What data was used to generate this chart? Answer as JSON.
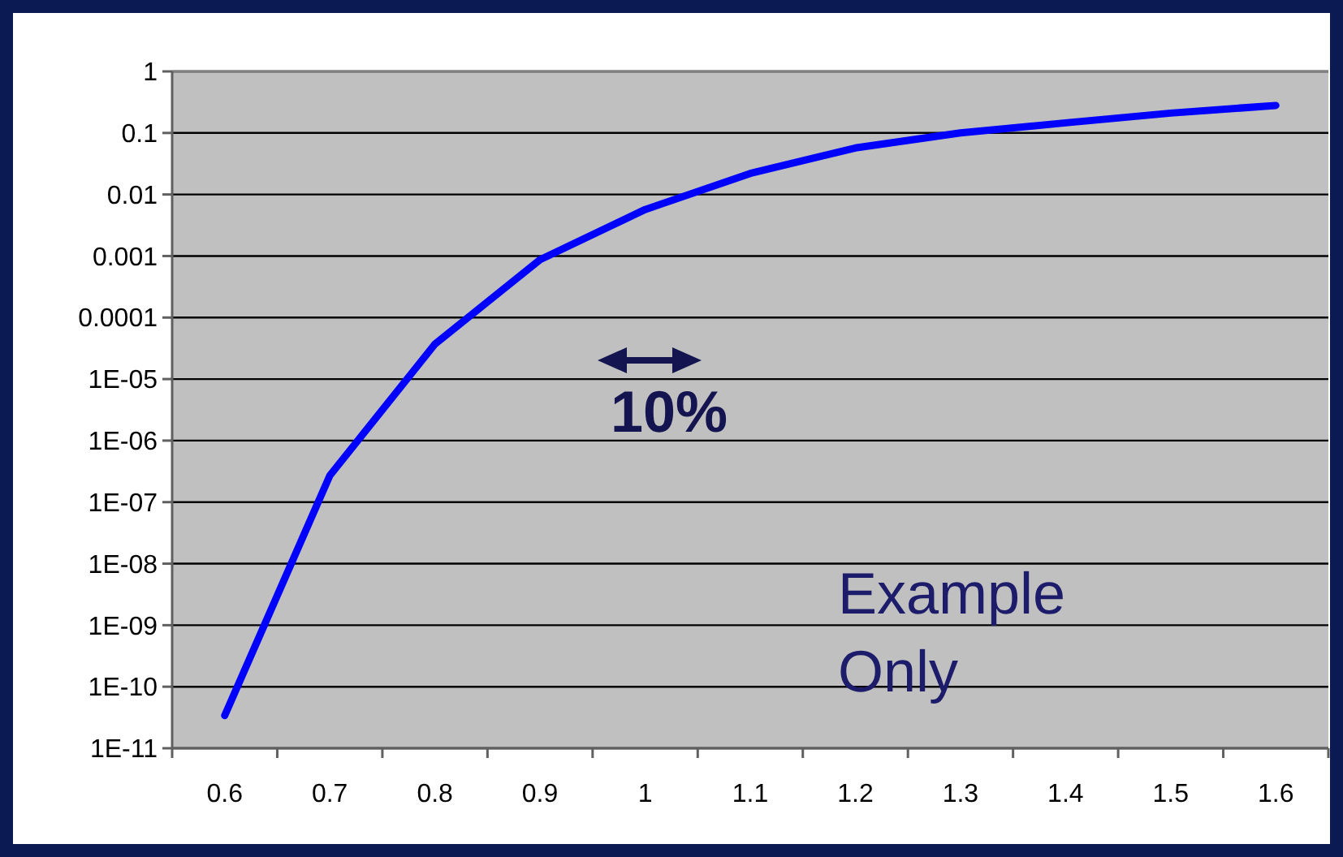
{
  "chart_data": {
    "type": "line",
    "log": "y",
    "categories": [
      "0.6",
      "0.7",
      "0.8",
      "0.9",
      "1",
      "1.1",
      "1.2",
      "1.3",
      "1.4",
      "1.5",
      "1.6"
    ],
    "series": [
      {
        "color": "#0000ff",
        "values": [
          3.4e-11,
          2.7e-07,
          3.7e-05,
          0.00087,
          0.0057,
          0.022,
          0.057,
          0.1,
          0.146,
          0.21,
          0.28
        ]
      }
    ],
    "ylim": [
      1e-11,
      1
    ],
    "yticks": [
      {
        "value": 1e-11,
        "label": "1E-11"
      },
      {
        "value": 1e-10,
        "label": "1E-10"
      },
      {
        "value": 1e-09,
        "label": "1E-09"
      },
      {
        "value": 1e-08,
        "label": "1E-08"
      },
      {
        "value": 1e-07,
        "label": "1E-07"
      },
      {
        "value": 1e-06,
        "label": "1E-06"
      },
      {
        "value": 1e-05,
        "label": "1E-05"
      },
      0.0001,
      0.001,
      0.01,
      0.1,
      1
    ],
    "grid": "y",
    "marker": "none",
    "line_style": "solid",
    "annotations": [
      "10%",
      "Example Only"
    ]
  }
}
